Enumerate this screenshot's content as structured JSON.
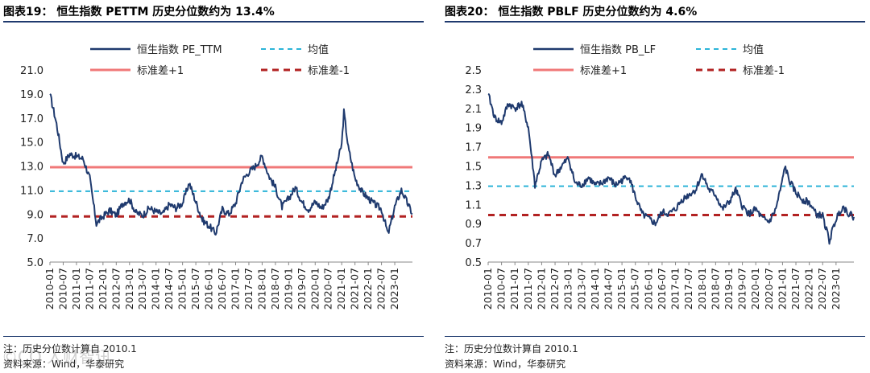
{
  "panels": [
    {
      "title": "图表19：  恒生指数 PETTM 历史分位数约为 13.4%",
      "note": "注：历史分位数计算自 2010.1",
      "source": "资料来源：Wind，华泰研究"
    },
    {
      "title": "图表20：  恒生指数 PBLF 历史分位数约为 4.6%",
      "note": "注：历史分位数计算自 2010.1",
      "source": "资料来源：Wind，华泰研究"
    }
  ],
  "watermark": "©CO 人财智讯",
  "colors": {
    "series": "#1f3a6e",
    "mean": "#2cb4d8",
    "plus1": "#f07878",
    "minus1": "#b22222"
  },
  "chart_data": [
    {
      "type": "line",
      "x_tick_labels": [
        "2010-01",
        "2010-07",
        "2011-01",
        "2011-07",
        "2012-01",
        "2012-07",
        "2013-01",
        "2013-07",
        "2014-01",
        "2014-07",
        "2015-01",
        "2015-07",
        "2016-01",
        "2016-07",
        "2017-01",
        "2017-07",
        "2018-01",
        "2018-07",
        "2019-01",
        "2019-07",
        "2020-01",
        "2020-07",
        "2021-01",
        "2021-07",
        "2022-01",
        "2022-07",
        "2023-01"
      ],
      "y_tick_labels": [
        "5.0",
        "7.0",
        "9.0",
        "11.0",
        "13.0",
        "15.0",
        "17.0",
        "19.0",
        "21.0"
      ],
      "ylim": [
        5.0,
        21.0
      ],
      "legend": [
        "恒生指数 PE_TTM",
        "均值",
        "标准差+1",
        "标准差-1"
      ],
      "mean": 10.9,
      "plus1": 12.9,
      "minus1": 8.8,
      "series": [
        {
          "name": "恒生指数 PE_TTM",
          "x": [
            "2010-01",
            "2010-04",
            "2010-07",
            "2010-10",
            "2011-01",
            "2011-04",
            "2011-07",
            "2011-10",
            "2012-01",
            "2012-04",
            "2012-07",
            "2012-10",
            "2013-01",
            "2013-04",
            "2013-07",
            "2013-10",
            "2014-01",
            "2014-04",
            "2014-07",
            "2014-10",
            "2015-01",
            "2015-04",
            "2015-07",
            "2015-10",
            "2016-01",
            "2016-04",
            "2016-07",
            "2016-10",
            "2017-01",
            "2017-04",
            "2017-07",
            "2017-10",
            "2018-01",
            "2018-04",
            "2018-07",
            "2018-10",
            "2019-01",
            "2019-04",
            "2019-07",
            "2019-10",
            "2020-01",
            "2020-04",
            "2020-07",
            "2020-10",
            "2021-01",
            "2021-02",
            "2021-04",
            "2021-07",
            "2021-10",
            "2022-01",
            "2022-04",
            "2022-07",
            "2022-10",
            "2023-01",
            "2023-04",
            "2023-07",
            "2023-09"
          ],
          "values": [
            19.0,
            16.5,
            13.2,
            14.0,
            13.8,
            13.6,
            12.0,
            8.2,
            8.8,
            9.3,
            8.9,
            9.9,
            10.2,
            9.1,
            8.9,
            9.5,
            9.2,
            9.0,
            9.8,
            9.5,
            9.9,
            11.6,
            10.0,
            8.5,
            8.0,
            7.4,
            9.4,
            9.0,
            9.9,
            11.8,
            12.5,
            13.0,
            13.8,
            12.2,
            11.2,
            9.6,
            10.3,
            11.2,
            10.0,
            9.4,
            10.0,
            9.5,
            10.3,
            12.5,
            14.8,
            17.5,
            14.5,
            12.0,
            10.9,
            10.3,
            9.8,
            9.4,
            7.3,
            9.6,
            11.0,
            9.8,
            9.0
          ]
        }
      ]
    },
    {
      "type": "line",
      "x_tick_labels": [
        "2010-01",
        "2010-07",
        "2011-01",
        "2011-07",
        "2012-01",
        "2012-07",
        "2013-01",
        "2013-07",
        "2014-01",
        "2014-07",
        "2015-01",
        "2015-07",
        "2016-01",
        "2016-07",
        "2017-01",
        "2017-07",
        "2018-01",
        "2018-07",
        "2019-01",
        "2019-07",
        "2020-01",
        "2020-07",
        "2021-01",
        "2021-07",
        "2022-01",
        "2022-07",
        "2023-01"
      ],
      "y_tick_labels": [
        "0.5",
        "0.7",
        "0.9",
        "1.1",
        "1.3",
        "1.5",
        "1.7",
        "1.9",
        "2.1",
        "2.3",
        "2.5"
      ],
      "ylim": [
        0.5,
        2.5
      ],
      "legend": [
        "恒生指数 PB_LF",
        "均值",
        "标准差+1",
        "标准差-1"
      ],
      "mean": 1.29,
      "plus1": 1.59,
      "minus1": 0.99,
      "series": [
        {
          "name": "恒生指数 PB_LF",
          "x": [
            "2010-01",
            "2010-04",
            "2010-07",
            "2010-10",
            "2011-01",
            "2011-04",
            "2011-07",
            "2011-10",
            "2012-01",
            "2012-04",
            "2012-07",
            "2012-10",
            "2013-01",
            "2013-04",
            "2013-07",
            "2013-10",
            "2014-01",
            "2014-04",
            "2014-07",
            "2014-10",
            "2015-01",
            "2015-04",
            "2015-07",
            "2015-10",
            "2016-01",
            "2016-04",
            "2016-07",
            "2016-10",
            "2017-01",
            "2017-04",
            "2017-07",
            "2017-10",
            "2018-01",
            "2018-04",
            "2018-07",
            "2018-10",
            "2019-01",
            "2019-04",
            "2019-07",
            "2019-10",
            "2020-01",
            "2020-04",
            "2020-07",
            "2020-10",
            "2021-01",
            "2021-02",
            "2021-04",
            "2021-07",
            "2021-10",
            "2022-01",
            "2022-04",
            "2022-07",
            "2022-10",
            "2023-01",
            "2023-04",
            "2023-07",
            "2023-09"
          ],
          "values": [
            2.25,
            2.0,
            1.95,
            2.15,
            2.1,
            2.15,
            1.9,
            1.3,
            1.55,
            1.62,
            1.4,
            1.5,
            1.58,
            1.32,
            1.3,
            1.38,
            1.3,
            1.32,
            1.38,
            1.3,
            1.35,
            1.4,
            1.18,
            1.0,
            0.95,
            0.9,
            1.02,
            1.0,
            1.05,
            1.15,
            1.2,
            1.25,
            1.42,
            1.25,
            1.2,
            1.05,
            1.12,
            1.25,
            1.08,
            1.0,
            1.05,
            0.95,
            0.92,
            1.05,
            1.35,
            1.5,
            1.35,
            1.22,
            1.15,
            1.12,
            1.0,
            0.98,
            0.72,
            0.95,
            1.08,
            1.0,
            0.97
          ]
        }
      ]
    }
  ]
}
